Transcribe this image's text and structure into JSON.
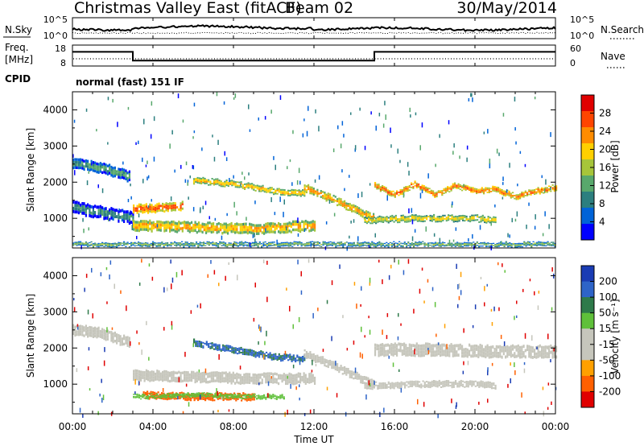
{
  "header": {
    "title": "Christmas Valley East (fitACF)",
    "beam": "Beam 02",
    "date": "30/May/2014"
  },
  "params": {
    "nsky_label": "N.Sky",
    "nsearch_label": "N.Search",
    "freq_label_line1": "Freq.",
    "freq_label_line2": "[MHz]",
    "nave_label": "Nave",
    "cpid_label": "CPID",
    "noise_ticks": [
      "10^5",
      "10^0"
    ],
    "noise_ticks_right": [
      "10^5",
      "10^0"
    ],
    "freq_ticks": [
      "18",
      "8"
    ],
    "nave_ticks": [
      "60",
      "0"
    ],
    "cpid_text": "normal (fast) 151 IF",
    "freq_steps": [
      {
        "t": 0.0,
        "freq_mhz": 14.8
      },
      {
        "t": 3.0,
        "freq_mhz": 10.6
      },
      {
        "t": 15.0,
        "freq_mhz": 14.8
      },
      {
        "t": 24.0,
        "freq_mhz": 14.8
      }
    ]
  },
  "axes": {
    "x_label": "Time UT",
    "x_ticks": [
      "00:00",
      "04:00",
      "08:00",
      "12:00",
      "16:00",
      "20:00",
      "00:00"
    ],
    "y_label": "Slant Range [km]",
    "y_ticks": [
      "1000",
      "2000",
      "3000",
      "4000"
    ]
  },
  "power_colorbar": {
    "label": "Power [dB]",
    "ticks": [
      "4",
      "8",
      "12",
      "16",
      "20",
      "24",
      "28"
    ],
    "colors": [
      "#0000ff",
      "#0063d8",
      "#2c7f7f",
      "#58a86c",
      "#a6c53a",
      "#ffd000",
      "#ff8c00",
      "#ff4500",
      "#e00000"
    ]
  },
  "velocity_colorbar": {
    "label": "Velocity [m s⁻¹]",
    "ticks": [
      "200",
      "100",
      "50",
      "15",
      "-15",
      "-50",
      "-100",
      "-200"
    ],
    "colors": [
      "#1a3cb4",
      "#2e64c8",
      "#2e7a4a",
      "#5fc03a",
      "#c6c6bc",
      "#c6c6bc",
      "#ffa000",
      "#ff6000",
      "#e00000"
    ]
  },
  "chart_data": [
    {
      "type": "heatmap",
      "title": "Power",
      "xlabel": "Time UT",
      "ylabel": "Slant Range [km]",
      "xlim": [
        0,
        24
      ],
      "ylim": [
        180,
        4500
      ],
      "colorbar_range_db": [
        0,
        30
      ],
      "bands": [
        {
          "name": "band-early",
          "t": [
            0,
            1,
            2,
            2.8
          ],
          "center_km": [
            2500,
            2450,
            2300,
            2150
          ],
          "width_km": 300,
          "power_db": 14
        },
        {
          "name": "band-low-morning",
          "t": [
            0,
            1.5,
            3
          ],
          "center_km": [
            1300,
            1150,
            1000
          ],
          "width_km": 350,
          "power_db": 12
        },
        {
          "name": "band-morning-upper",
          "t": [
            3,
            4,
            5.5
          ],
          "center_km": [
            1250,
            1280,
            1350
          ],
          "width_km": 250,
          "power_db": 27
        },
        {
          "name": "band-midday-upper",
          "t": [
            6,
            8,
            10,
            11.5
          ],
          "center_km": [
            2050,
            1950,
            1750,
            1700
          ],
          "width_km": 180,
          "power_db": 22
        },
        {
          "name": "band-lower-day",
          "t": [
            3,
            6,
            9,
            12
          ],
          "center_km": [
            800,
            750,
            700,
            800
          ],
          "width_km": 300,
          "power_db": 23
        },
        {
          "name": "band-descending",
          "t": [
            11.5,
            13,
            14.5,
            15
          ],
          "center_km": [
            1850,
            1500,
            1100,
            1000
          ],
          "width_km": 220,
          "power_db": 24
        },
        {
          "name": "band-evening-wave",
          "t": [
            15,
            16,
            17,
            18,
            19,
            20,
            21,
            22,
            23,
            24
          ],
          "center_km": [
            1900,
            1650,
            1950,
            1650,
            1900,
            1750,
            1800,
            1600,
            1750,
            1850
          ],
          "width_km": 160,
          "power_db": 26
        },
        {
          "name": "band-evening-low",
          "t": [
            14.5,
            17,
            20,
            21
          ],
          "center_km": [
            950,
            1000,
            1000,
            950
          ],
          "width_km": 180,
          "power_db": 21
        },
        {
          "name": "band-near-range",
          "t": [
            0,
            12,
            24
          ],
          "center_km": [
            280,
            280,
            280
          ],
          "width_km": 120,
          "power_db": 16
        }
      ]
    },
    {
      "type": "heatmap",
      "title": "Velocity",
      "xlabel": "Time UT",
      "ylabel": "Slant Range [km]",
      "xlim": [
        0,
        24
      ],
      "ylim": [
        180,
        4500
      ],
      "colorbar_range_ms": [
        -200,
        200
      ],
      "bands": [
        {
          "name": "v-early",
          "t": [
            0,
            1,
            2,
            2.8
          ],
          "center_km": [
            2500,
            2450,
            2300,
            2150
          ],
          "width_km": 300,
          "velocity_ms": 0
        },
        {
          "name": "v-morning-low",
          "t": [
            3,
            6,
            9,
            12
          ],
          "center_km": [
            1250,
            1200,
            1150,
            1150
          ],
          "width_km": 300,
          "velocity_ms": 0
        },
        {
          "name": "v-midday-upper",
          "t": [
            6,
            8,
            10,
            11.5
          ],
          "center_km": [
            2150,
            1950,
            1750,
            1700
          ],
          "width_km": 180,
          "velocity_ms": 80
        },
        {
          "name": "v-orange-lower",
          "t": [
            3.5,
            6,
            9
          ],
          "center_km": [
            700,
            650,
            650
          ],
          "width_km": 200,
          "velocity_ms": -80
        },
        {
          "name": "v-green-lower",
          "t": [
            3,
            6,
            9,
            10.5
          ],
          "center_km": [
            650,
            700,
            650,
            650
          ],
          "width_km": 120,
          "velocity_ms": 30
        },
        {
          "name": "v-descending",
          "t": [
            11.5,
            13,
            14.5,
            15
          ],
          "center_km": [
            1850,
            1500,
            1100,
            1000
          ],
          "width_km": 220,
          "velocity_ms": 0
        },
        {
          "name": "v-evening",
          "t": [
            15,
            18,
            21,
            24
          ],
          "center_km": [
            1950,
            1950,
            1900,
            1900
          ],
          "width_km": 350,
          "velocity_ms": 0
        },
        {
          "name": "v-evening-low",
          "t": [
            14.5,
            17,
            20,
            21
          ],
          "center_km": [
            950,
            1000,
            1000,
            950
          ],
          "width_km": 180,
          "velocity_ms": 0
        }
      ]
    }
  ]
}
